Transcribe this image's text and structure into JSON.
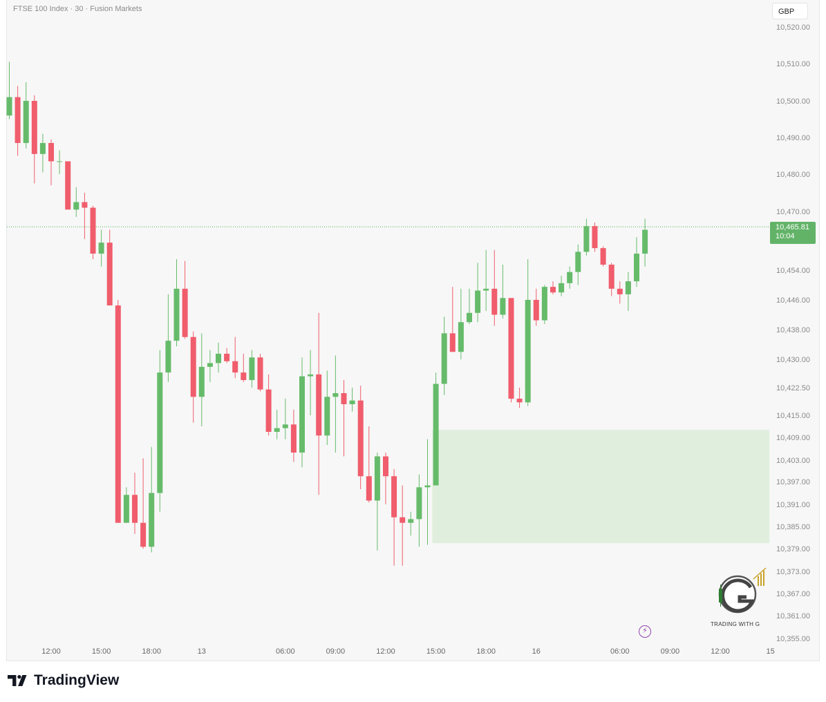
{
  "header": {
    "symbol_title": "FTSE 100 Index · 30 · Fusion Markets",
    "currency": "GBP"
  },
  "price_tag": {
    "price": "10,465.81",
    "countdown": "10:04"
  },
  "watermark": {
    "caption": "TRADING WITH G"
  },
  "footer": {
    "brand": "TradingView"
  },
  "colors": {
    "up": "#66bb6a",
    "down": "#f05d6c",
    "zone": "#dfeedd",
    "axis_text": "#8a8a8a",
    "last_price_line": "#4caf50",
    "brand_icon": "#8e44ad"
  },
  "chart_data": {
    "type": "candlestick",
    "title": "FTSE 100 Index · 30 · Fusion Markets",
    "y_ticks": [
      "10,520.00",
      "10,510.00",
      "10,500.00",
      "10,490.00",
      "10,480.00",
      "10,470.00",
      "10,454.00",
      "10,446.00",
      "10,438.00",
      "10,430.00",
      "10,422.50",
      "10,415.00",
      "10,409.00",
      "10,403.00",
      "10,397.00",
      "10,391.00",
      "10,385.00",
      "10,379.00",
      "10,373.00",
      "10,367.00",
      "10,361.00",
      "10,355.00"
    ],
    "x_ticks": [
      {
        "label": "12:00",
        "candle": 5
      },
      {
        "label": "15:00",
        "candle": 11
      },
      {
        "label": "18:00",
        "candle": 17
      },
      {
        "label": "13",
        "candle": 23
      },
      {
        "label": "06:00",
        "candle": 33
      },
      {
        "label": "09:00",
        "candle": 39
      },
      {
        "label": "12:00",
        "candle": 45
      },
      {
        "label": "15:00",
        "candle": 51
      },
      {
        "label": "18:00",
        "candle": 57
      },
      {
        "label": "16",
        "candle": 63
      },
      {
        "label": "06:00",
        "candle": 73
      },
      {
        "label": "09:00",
        "candle": 79
      },
      {
        "label": "12:00",
        "candle": 85
      },
      {
        "label": "15",
        "candle": 91
      }
    ],
    "last_price": 10465.81,
    "demand_zone": {
      "from_candle": 51,
      "to": "right-edge",
      "top": 10411.0,
      "bottom": 10380.5
    },
    "ohlc": [
      {
        "o": 10496.0,
        "h": 10510.5,
        "l": 10495.0,
        "c": 10501.0
      },
      {
        "o": 10501.0,
        "h": 10504.0,
        "l": 10485.0,
        "c": 10488.5
      },
      {
        "o": 10488.5,
        "h": 10505.0,
        "l": 10487.0,
        "c": 10500.0
      },
      {
        "o": 10500.0,
        "h": 10501.5,
        "l": 10477.5,
        "c": 10485.5
      },
      {
        "o": 10485.5,
        "h": 10491.0,
        "l": 10480.5,
        "c": 10488.5
      },
      {
        "o": 10488.5,
        "h": 10489.5,
        "l": 10477.0,
        "c": 10483.5
      },
      {
        "o": 10483.5,
        "h": 10486.5,
        "l": 10480.0,
        "c": 10483.5
      },
      {
        "o": 10483.5,
        "h": 10483.5,
        "l": 10471.0,
        "c": 10470.5
      },
      {
        "o": 10470.5,
        "h": 10476.5,
        "l": 10468.5,
        "c": 10472.5
      },
      {
        "o": 10472.5,
        "h": 10475.0,
        "l": 10462.5,
        "c": 10471.0
      },
      {
        "o": 10471.0,
        "h": 10471.5,
        "l": 10457.0,
        "c": 10458.5
      },
      {
        "o": 10458.5,
        "h": 10465.0,
        "l": 10455.0,
        "c": 10461.5
      },
      {
        "o": 10461.5,
        "h": 10465.0,
        "l": 10444.5,
        "c": 10444.5
      },
      {
        "o": 10444.5,
        "h": 10446.0,
        "l": 10386.0,
        "c": 10386.0
      },
      {
        "o": 10386.0,
        "h": 10395.5,
        "l": 10386.0,
        "c": 10393.5
      },
      {
        "o": 10393.5,
        "h": 10399.5,
        "l": 10383.0,
        "c": 10386.0
      },
      {
        "o": 10386.0,
        "h": 10403.5,
        "l": 10379.0,
        "c": 10379.5
      },
      {
        "o": 10379.5,
        "h": 10406.5,
        "l": 10378.0,
        "c": 10394.0
      },
      {
        "o": 10394.0,
        "h": 10432.5,
        "l": 10389.0,
        "c": 10426.5
      },
      {
        "o": 10426.5,
        "h": 10447.5,
        "l": 10424.0,
        "c": 10435.0
      },
      {
        "o": 10435.0,
        "h": 10457.0,
        "l": 10433.5,
        "c": 10449.0
      },
      {
        "o": 10449.0,
        "h": 10456.5,
        "l": 10435.5,
        "c": 10436.0
      },
      {
        "o": 10436.0,
        "h": 10437.5,
        "l": 10413.0,
        "c": 10420.0
      },
      {
        "o": 10420.0,
        "h": 10437.0,
        "l": 10412.0,
        "c": 10428.0
      },
      {
        "o": 10428.0,
        "h": 10432.5,
        "l": 10424.0,
        "c": 10429.0
      },
      {
        "o": 10429.0,
        "h": 10434.5,
        "l": 10426.5,
        "c": 10431.5
      },
      {
        "o": 10431.5,
        "h": 10433.0,
        "l": 10429.0,
        "c": 10429.5
      },
      {
        "o": 10429.5,
        "h": 10436.0,
        "l": 10425.0,
        "c": 10426.5
      },
      {
        "o": 10426.5,
        "h": 10431.5,
        "l": 10424.0,
        "c": 10424.5
      },
      {
        "o": 10424.5,
        "h": 10432.5,
        "l": 10422.5,
        "c": 10430.5
      },
      {
        "o": 10430.5,
        "h": 10431.5,
        "l": 10421.5,
        "c": 10422.0
      },
      {
        "o": 10422.0,
        "h": 10426.0,
        "l": 10409.5,
        "c": 10410.5
      },
      {
        "o": 10410.5,
        "h": 10416.5,
        "l": 10408.5,
        "c": 10411.5
      },
      {
        "o": 10411.5,
        "h": 10419.5,
        "l": 10408.5,
        "c": 10412.5
      },
      {
        "o": 10412.5,
        "h": 10416.5,
        "l": 10402.5,
        "c": 10405.0
      },
      {
        "o": 10405.0,
        "h": 10430.5,
        "l": 10401.0,
        "c": 10425.5
      },
      {
        "o": 10425.5,
        "h": 10432.5,
        "l": 10415.0,
        "c": 10426.0
      },
      {
        "o": 10426.0,
        "h": 10442.5,
        "l": 10393.5,
        "c": 10409.5
      },
      {
        "o": 10409.5,
        "h": 10427.0,
        "l": 10407.0,
        "c": 10420.0
      },
      {
        "o": 10420.0,
        "h": 10431.0,
        "l": 10405.0,
        "c": 10421.0
      },
      {
        "o": 10421.0,
        "h": 10424.5,
        "l": 10404.0,
        "c": 10418.0
      },
      {
        "o": 10418.0,
        "h": 10422.5,
        "l": 10416.0,
        "c": 10419.0
      },
      {
        "o": 10419.0,
        "h": 10423.0,
        "l": 10395.0,
        "c": 10398.5
      },
      {
        "o": 10398.5,
        "h": 10412.0,
        "l": 10391.5,
        "c": 10392.0
      },
      {
        "o": 10392.0,
        "h": 10405.0,
        "l": 10378.5,
        "c": 10404.0
      },
      {
        "o": 10404.0,
        "h": 10405.0,
        "l": 10391.0,
        "c": 10398.5
      },
      {
        "o": 10398.5,
        "h": 10400.5,
        "l": 10374.5,
        "c": 10387.5
      },
      {
        "o": 10387.5,
        "h": 10396.0,
        "l": 10374.5,
        "c": 10386.0
      },
      {
        "o": 10386.0,
        "h": 10389.0,
        "l": 10382.5,
        "c": 10387.0
      },
      {
        "o": 10387.0,
        "h": 10399.0,
        "l": 10379.5,
        "c": 10395.5
      },
      {
        "o": 10395.5,
        "h": 10408.5,
        "l": 10380.0,
        "c": 10396.0
      },
      {
        "o": 10396.0,
        "h": 10426.5,
        "l": 10396.0,
        "c": 10423.5
      },
      {
        "o": 10423.5,
        "h": 10441.5,
        "l": 10420.5,
        "c": 10437.0
      },
      {
        "o": 10437.0,
        "h": 10449.5,
        "l": 10432.0,
        "c": 10432.0
      },
      {
        "o": 10432.0,
        "h": 10449.0,
        "l": 10430.0,
        "c": 10440.0
      },
      {
        "o": 10440.0,
        "h": 10449.0,
        "l": 10439.5,
        "c": 10442.5
      },
      {
        "o": 10442.5,
        "h": 10456.0,
        "l": 10440.0,
        "c": 10448.5
      },
      {
        "o": 10448.5,
        "h": 10459.5,
        "l": 10443.0,
        "c": 10449.0
      },
      {
        "o": 10449.0,
        "h": 10459.5,
        "l": 10439.0,
        "c": 10442.0
      },
      {
        "o": 10442.0,
        "h": 10455.5,
        "l": 10441.0,
        "c": 10446.5
      },
      {
        "o": 10446.5,
        "h": 10446.5,
        "l": 10418.5,
        "c": 10419.5
      },
      {
        "o": 10419.5,
        "h": 10422.5,
        "l": 10417.0,
        "c": 10418.5
      },
      {
        "o": 10418.5,
        "h": 10457.0,
        "l": 10417.5,
        "c": 10446.0
      },
      {
        "o": 10446.0,
        "h": 10449.0,
        "l": 10439.0,
        "c": 10440.5
      },
      {
        "o": 10440.5,
        "h": 10450.0,
        "l": 10439.5,
        "c": 10449.5
      },
      {
        "o": 10449.5,
        "h": 10451.0,
        "l": 10447.5,
        "c": 10448.0
      },
      {
        "o": 10448.0,
        "h": 10452.5,
        "l": 10447.0,
        "c": 10450.5
      },
      {
        "o": 10450.5,
        "h": 10455.0,
        "l": 10449.0,
        "c": 10453.5
      },
      {
        "o": 10453.5,
        "h": 10461.0,
        "l": 10450.0,
        "c": 10459.0
      },
      {
        "o": 10459.0,
        "h": 10468.0,
        "l": 10458.0,
        "c": 10466.0
      },
      {
        "o": 10466.0,
        "h": 10467.0,
        "l": 10459.0,
        "c": 10460.0
      },
      {
        "o": 10460.0,
        "h": 10460.5,
        "l": 10455.0,
        "c": 10455.5
      },
      {
        "o": 10455.5,
        "h": 10456.0,
        "l": 10447.0,
        "c": 10449.0
      },
      {
        "o": 10449.0,
        "h": 10451.0,
        "l": 10445.0,
        "c": 10447.5
      },
      {
        "o": 10447.5,
        "h": 10453.5,
        "l": 10443.0,
        "c": 10451.0
      },
      {
        "o": 10451.0,
        "h": 10463.0,
        "l": 10449.5,
        "c": 10458.5
      },
      {
        "o": 10458.5,
        "h": 10468.0,
        "l": 10455.0,
        "c": 10465.0
      }
    ]
  }
}
